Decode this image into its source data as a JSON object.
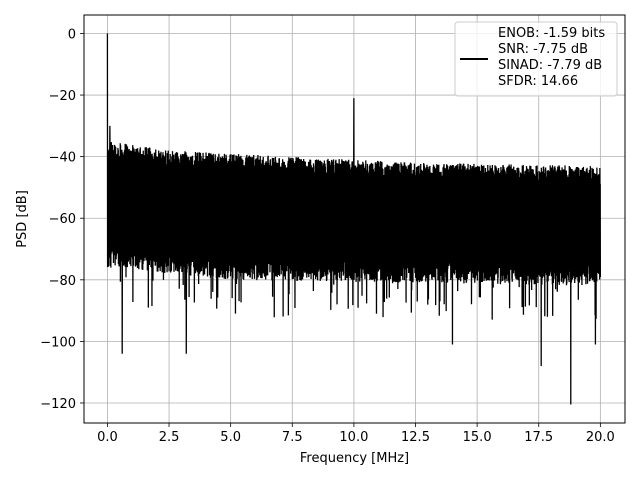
{
  "chart_data": {
    "type": "line",
    "title": "",
    "xlabel": "Frequency [MHz]",
    "ylabel": "PSD [dB]",
    "xlim": [
      -0.95,
      21.0
    ],
    "ylim": [
      -126.5,
      6.0
    ],
    "xticks": [
      0.0,
      2.5,
      5.0,
      7.5,
      10.0,
      12.5,
      15.0,
      17.5,
      20.0
    ],
    "xtick_labels": [
      "0.0",
      "2.5",
      "5.0",
      "7.5",
      "10.0",
      "12.5",
      "15.0",
      "17.5",
      "20.0"
    ],
    "yticks": [
      0,
      -20,
      -40,
      -60,
      -80,
      -100,
      -120
    ],
    "ytick_labels": [
      "0",
      "−20",
      "−40",
      "−60",
      "−80",
      "−100",
      "−120"
    ],
    "grid": true,
    "line_color": "#000000",
    "series": [
      {
        "label_lines": [
          "ENOB: -1.59 bits",
          "SNR: -7.75 dB",
          "SINAD: -7.79 dB",
          "SFDR: 14.66"
        ],
        "x_range": [
          0.0,
          20.0
        ],
        "noise_ceiling": [
          [
            0.0,
            -35.0
          ],
          [
            2.5,
            -38.0
          ],
          [
            7.5,
            -40.0
          ],
          [
            12.5,
            -42.0
          ],
          [
            20.0,
            -43.0
          ]
        ],
        "noise_floor": [
          [
            0.0,
            -76.0
          ],
          [
            5.0,
            -80.0
          ],
          [
            20.0,
            -82.0
          ]
        ],
        "peaks": [
          {
            "x": 0.0,
            "y": 0.0
          },
          {
            "x": 0.1,
            "y": -30.0
          },
          {
            "x": 10.0,
            "y": -21.0
          }
        ],
        "minima": [
          {
            "x": 0.6,
            "y": -104.0
          },
          {
            "x": 3.2,
            "y": -104.0
          },
          {
            "x": 14.0,
            "y": -101.0
          },
          {
            "x": 17.6,
            "y": -108.0
          },
          {
            "x": 18.8,
            "y": -120.5
          },
          {
            "x": 19.8,
            "y": -101.0
          }
        ]
      }
    ],
    "legend_position": "top-right"
  }
}
